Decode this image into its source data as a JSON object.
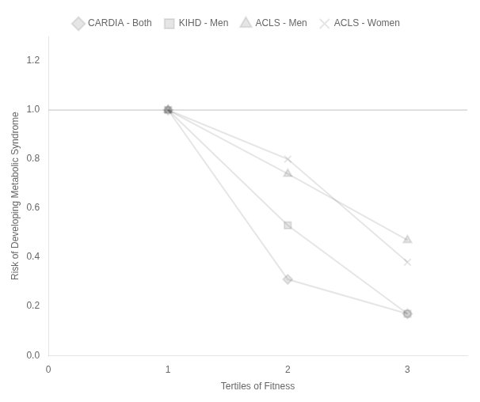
{
  "chart_data": {
    "type": "line",
    "x": [
      1,
      2,
      3
    ],
    "series": [
      {
        "name": "CARDIA - Both",
        "values": [
          1.0,
          0.31,
          0.17
        ],
        "marker": "diamond",
        "line_style": "solid"
      },
      {
        "name": "KIHD - Men",
        "values": [
          1.0,
          0.53,
          0.17
        ],
        "marker": "square",
        "line_style": "solid"
      },
      {
        "name": "ACLS - Men",
        "values": [
          1.0,
          0.74,
          0.47
        ],
        "marker": "triangle",
        "line_style": "solid"
      },
      {
        "name": "ACLS - Women",
        "values": [
          1.0,
          0.8,
          0.38
        ],
        "marker": "x",
        "line_style": "solid"
      }
    ],
    "x_label": "Tertiles of Fitness",
    "y_label": "Risk of Developing Metabolic Syndrome",
    "xlim": [
      0,
      3.5
    ],
    "ylim": [
      0,
      1.3
    ],
    "xticks": [
      0,
      1,
      2,
      3
    ],
    "yticks": [
      {
        "value": 0,
        "label": "0.0"
      },
      0.2,
      0.4,
      0.6,
      0.8,
      {
        "value": 1.0,
        "label": "1.0"
      },
      1.2
    ],
    "hline": 1.0,
    "grid": false,
    "legend": "top"
  }
}
